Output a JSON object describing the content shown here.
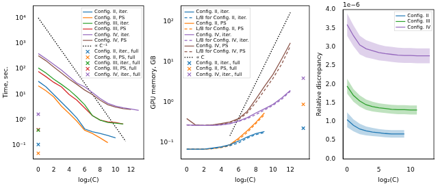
{
  "chart_data": [
    {
      "type": "line",
      "x_label": "log₂(C)",
      "y_label": "Time, sec.",
      "log": "y",
      "grid": false,
      "legend": "upper right",
      "xlim": [
        -0.65,
        13.65
      ],
      "xticks": [
        0,
        2,
        4,
        6,
        8,
        10,
        12
      ],
      "ylim": [
        0.03,
        30000
      ],
      "yticks": [
        {
          "value": 0.1,
          "label": "10⁻¹"
        },
        {
          "value": 1,
          "label": "10⁰"
        },
        {
          "value": 10,
          "label": "10¹"
        },
        {
          "value": 100,
          "label": "10²"
        },
        {
          "value": 1000,
          "label": "10³"
        },
        {
          "value": 10000,
          "label": "10⁴"
        }
      ],
      "series": [
        {
          "name": "Config. II, iter.",
          "color": "#1f77b4",
          "line_style": "solid",
          "x": [
            0,
            1,
            2,
            3,
            4,
            5,
            6,
            7,
            8,
            9,
            10
          ],
          "values": [
            33,
            20,
            10,
            5,
            2.5,
            1.2,
            0.45,
            0.35,
            0.3,
            0.25,
            0.2
          ]
        },
        {
          "name": "Config. II, PS",
          "color": "#ff7f0e",
          "line_style": "solid",
          "x": [
            0,
            1,
            2,
            3,
            4,
            5,
            6,
            7,
            8,
            9
          ],
          "values": [
            22,
            14,
            8,
            3.5,
            1.8,
            0.9,
            0.4,
            0.3,
            0.2,
            0.13
          ]
        },
        {
          "name": "Config. III, iter.",
          "color": "#2ca02c",
          "line_style": "solid",
          "x": [
            0,
            1,
            2,
            3,
            4,
            5,
            6,
            7,
            8,
            9,
            10,
            11
          ],
          "values": [
            110,
            70,
            40,
            25,
            15,
            8,
            4,
            1.5,
            1.0,
            0.8,
            0.75,
            0.7
          ]
        },
        {
          "name": "Config. III, PS",
          "color": "#d62728",
          "line_style": "solid",
          "x": [
            0,
            1,
            2,
            3,
            4,
            5,
            6,
            7,
            8,
            9,
            10,
            11
          ],
          "values": [
            80,
            50,
            30,
            20,
            10,
            6,
            3,
            1.5,
            1.0,
            0.85,
            0.8,
            0.7
          ]
        },
        {
          "name": "Config. IV, iter.",
          "color": "#9467bd",
          "line_style": "solid",
          "x": [
            0,
            1,
            2,
            3,
            4,
            5,
            6,
            7,
            8,
            9,
            10,
            11,
            12,
            13
          ],
          "values": [
            400,
            250,
            150,
            90,
            50,
            28,
            20,
            12,
            7,
            4.5,
            3.5,
            3,
            2.7,
            2.4
          ]
        },
        {
          "name": "Config. IV, PS",
          "color": "#8c564b",
          "line_style": "solid",
          "x": [
            0,
            1,
            2,
            3,
            4,
            5,
            6,
            7,
            8,
            9,
            10,
            11,
            12
          ],
          "values": [
            330,
            210,
            120,
            70,
            40,
            25,
            15,
            10,
            6,
            4,
            3.2,
            2.8,
            2.6
          ]
        },
        {
          "name": "∝ C⁻¹",
          "color": "#000000",
          "line_style": "dotted",
          "x": [
            0,
            11.3
          ],
          "values": [
            10000,
            0.15
          ]
        },
        {
          "name": "Config. II, iter., full",
          "color": "#1f77b4",
          "type": "scatter",
          "marker": "x",
          "x": [
            0
          ],
          "values": [
            0.11
          ]
        },
        {
          "name": "Config. II, PS, full",
          "color": "#ff7f0e",
          "type": "scatter",
          "marker": "x",
          "x": [
            0
          ],
          "values": [
            0.05
          ]
        },
        {
          "name": "Config. III, iter., full",
          "color": "#2ca02c",
          "type": "scatter",
          "marker": "x",
          "x": [
            0
          ],
          "values": [
            0.4
          ]
        },
        {
          "name": "Config. III, PS, full",
          "color": "#d62728",
          "type": "scatter",
          "marker": "x",
          "x": [
            0
          ],
          "values": [
            0.42
          ]
        },
        {
          "name": "Config. IV, iter., full",
          "color": "#9467bd",
          "type": "scatter",
          "marker": "x",
          "x": [
            0
          ],
          "values": [
            1.7
          ]
        }
      ]
    },
    {
      "type": "line",
      "x_label": "log₂(C)",
      "y_label": "GPU memory, GB",
      "log": "y",
      "grid": false,
      "legend": "upper left",
      "xlim": [
        -0.65,
        14.2
      ],
      "xticks": [
        0,
        2,
        4,
        6,
        8,
        10,
        12
      ],
      "ylim": [
        0.04,
        250
      ],
      "yticks": [
        {
          "value": 0.1,
          "label": "10⁻¹"
        },
        {
          "value": 1,
          "label": "10⁰"
        },
        {
          "value": 10,
          "label": "10¹"
        },
        {
          "value": 100,
          "label": "10²"
        }
      ],
      "series": [
        {
          "name": "Config. II, iter.",
          "color": "#1f77b4",
          "line_style": "solid",
          "x": [
            0,
            1,
            2,
            3,
            4,
            5,
            6,
            7,
            8,
            9
          ],
          "values": [
            0.07,
            0.07,
            0.07,
            0.075,
            0.08,
            0.09,
            0.11,
            0.14,
            0.17,
            0.19
          ]
        },
        {
          "name": "L/B for Config. II, iter.",
          "color": "#1f77b4",
          "line_style": "dashed",
          "x": [
            0,
            1,
            2,
            3,
            4,
            5,
            6,
            7,
            8,
            9
          ],
          "values": [
            0.07,
            0.07,
            0.07,
            0.072,
            0.078,
            0.085,
            0.1,
            0.13,
            0.16,
            0.18
          ]
        },
        {
          "name": "Config. II, PS",
          "color": "#ff7f0e",
          "line_style": "solid",
          "x": [
            0,
            1,
            2,
            3,
            4,
            5,
            6,
            7,
            8,
            9
          ],
          "values": [
            0.07,
            0.07,
            0.07,
            0.072,
            0.078,
            0.09,
            0.13,
            0.2,
            0.32,
            0.55
          ]
        },
        {
          "name": "L/B for Config. II, PS",
          "color": "#ff7f0e",
          "line_style": "dashed",
          "x": [
            0,
            1,
            2,
            3,
            4,
            5,
            6,
            7,
            8,
            9
          ],
          "values": [
            0.07,
            0.07,
            0.07,
            0.072,
            0.076,
            0.085,
            0.12,
            0.18,
            0.3,
            0.5
          ]
        },
        {
          "name": "Config. IV, iter.",
          "color": "#9467bd",
          "line_style": "solid",
          "x": [
            0,
            1,
            2,
            3,
            4,
            5,
            6,
            7,
            8,
            9,
            10,
            11,
            12
          ],
          "values": [
            0.28,
            0.27,
            0.27,
            0.27,
            0.28,
            0.3,
            0.35,
            0.42,
            0.55,
            0.7,
            0.9,
            1.3,
            2.0
          ]
        },
        {
          "name": "L/B for Config. IV, iter.",
          "color": "#9467bd",
          "line_style": "dashed",
          "x": [
            0,
            1,
            2,
            3,
            4,
            5,
            6,
            7,
            8,
            9,
            10,
            11,
            12
          ],
          "values": [
            0.28,
            0.27,
            0.27,
            0.27,
            0.28,
            0.3,
            0.34,
            0.4,
            0.5,
            0.65,
            0.85,
            1.2,
            1.9
          ]
        },
        {
          "name": "Config. IV, PS",
          "color": "#8c564b",
          "line_style": "solid",
          "x": [
            0,
            1,
            2,
            3,
            4,
            5,
            6,
            7,
            8,
            9,
            10,
            11,
            12
          ],
          "values": [
            0.4,
            0.28,
            0.27,
            0.28,
            0.3,
            0.33,
            0.4,
            0.6,
            1.2,
            2.5,
            5,
            12,
            30
          ]
        },
        {
          "name": "L/B for Config. IV, PS",
          "color": "#8c564b",
          "line_style": "dashed",
          "x": [
            0,
            1,
            2,
            3,
            4,
            5,
            6,
            7,
            8,
            9,
            10,
            11,
            12
          ],
          "values": [
            0.28,
            0.27,
            0.27,
            0.28,
            0.29,
            0.32,
            0.38,
            0.55,
            1.0,
            2.0,
            4,
            9,
            25
          ]
        },
        {
          "name": "∝ C",
          "color": "#000000",
          "line_style": "dotted",
          "x": [
            5,
            12
          ],
          "values": [
            0.15,
            170
          ]
        },
        {
          "name": "Config. II, iter., full",
          "color": "#1f77b4",
          "type": "scatter",
          "marker": "x",
          "x": [
            13.5
          ],
          "values": [
            0.23
          ]
        },
        {
          "name": "Config. II, PS, full",
          "color": "#ff7f0e",
          "type": "scatter",
          "marker": "x",
          "x": [
            13.5
          ],
          "values": [
            0.9
          ]
        },
        {
          "name": "Config. IV, iter., full",
          "color": "#9467bd",
          "type": "scatter",
          "marker": "x",
          "x": [
            13.5
          ],
          "values": [
            4.0
          ]
        }
      ]
    },
    {
      "type": "line",
      "x_label": "log₂(C)",
      "y_label": "Relative discrepancy",
      "annotation": "1e−6",
      "grid": false,
      "legend": "upper right",
      "xlim": [
        -0.65,
        13.65
      ],
      "xticks": [
        0,
        5,
        10
      ],
      "ylim": [
        0,
        4e-06
      ],
      "yticks": [
        {
          "value": 0,
          "label": "0.0"
        },
        {
          "value": 5e-07,
          "label": "0.5"
        },
        {
          "value": 1e-06,
          "label": "1.0"
        },
        {
          "value": 1.5e-06,
          "label": "1.5"
        },
        {
          "value": 2e-06,
          "label": "2.0"
        },
        {
          "value": 2.5e-06,
          "label": "2.5"
        },
        {
          "value": 3e-06,
          "label": "3.0"
        },
        {
          "value": 3.5e-06,
          "label": "3.5"
        },
        {
          "value": 4e-06,
          "label": "4.0"
        }
      ],
      "series": [
        {
          "name": "Config. II",
          "color": "#1f77b4",
          "line_style": "solid",
          "x": [
            0,
            1,
            2,
            3,
            4,
            5,
            6,
            7,
            8,
            9
          ],
          "values": [
            1.05e-06,
            9e-07,
            8e-07,
            7.5e-07,
            7.2e-07,
            7e-07,
            6.8e-07,
            6.7e-07,
            6.7e-07,
            6.7e-07
          ],
          "lower": [
            8.5e-07,
            7.4e-07,
            6.6e-07,
            6.3e-07,
            6.1e-07,
            6e-07,
            5.8e-07,
            5.7e-07,
            5.7e-07,
            5.7e-07
          ],
          "upper": [
            1.25e-06,
            1.06e-06,
            9.4e-07,
            8.7e-07,
            8.3e-07,
            8e-07,
            7.8e-07,
            7.7e-07,
            7.7e-07,
            7.7e-07
          ]
        },
        {
          "name": "Config. III",
          "color": "#2ca02c",
          "line_style": "solid",
          "x": [
            0,
            1,
            2,
            3,
            4,
            5,
            6,
            7,
            8,
            9,
            10,
            11
          ],
          "values": [
            1.95e-06,
            1.7e-06,
            1.55e-06,
            1.45e-06,
            1.4e-06,
            1.37e-06,
            1.35e-06,
            1.33e-06,
            1.32e-06,
            1.32e-06,
            1.31e-06,
            1.31e-06
          ],
          "lower": [
            1.75e-06,
            1.53e-06,
            1.4e-06,
            1.31e-06,
            1.27e-06,
            1.25e-06,
            1.23e-06,
            1.21e-06,
            1.2e-06,
            1.2e-06,
            1.19e-06,
            1.19e-06
          ],
          "upper": [
            2.15e-06,
            1.87e-06,
            1.7e-06,
            1.59e-06,
            1.53e-06,
            1.49e-06,
            1.47e-06,
            1.45e-06,
            1.44e-06,
            1.44e-06,
            1.43e-06,
            1.43e-06
          ]
        },
        {
          "name": "Config. IV",
          "color": "#9467bd",
          "line_style": "solid",
          "x": [
            0,
            1,
            2,
            3,
            4,
            5,
            6,
            7,
            8,
            9,
            10,
            11,
            12,
            13
          ],
          "values": [
            3.6e-06,
            3.3e-06,
            3.05e-06,
            2.95e-06,
            2.9e-06,
            2.85e-06,
            2.82e-06,
            2.8e-06,
            2.78e-06,
            2.77e-06,
            2.77e-06,
            2.76e-06,
            2.76e-06,
            2.76e-06
          ],
          "lower": [
            3.3e-06,
            3.02e-06,
            2.8e-06,
            2.72e-06,
            2.68e-06,
            2.64e-06,
            2.62e-06,
            2.6e-06,
            2.58e-06,
            2.57e-06,
            2.57e-06,
            2.56e-06,
            2.56e-06,
            2.56e-06
          ],
          "upper": [
            3.9e-06,
            3.58e-06,
            3.3e-06,
            3.18e-06,
            3.12e-06,
            3.06e-06,
            3.02e-06,
            3e-06,
            2.98e-06,
            2.97e-06,
            2.97e-06,
            2.96e-06,
            2.96e-06,
            2.96e-06
          ]
        }
      ]
    }
  ]
}
